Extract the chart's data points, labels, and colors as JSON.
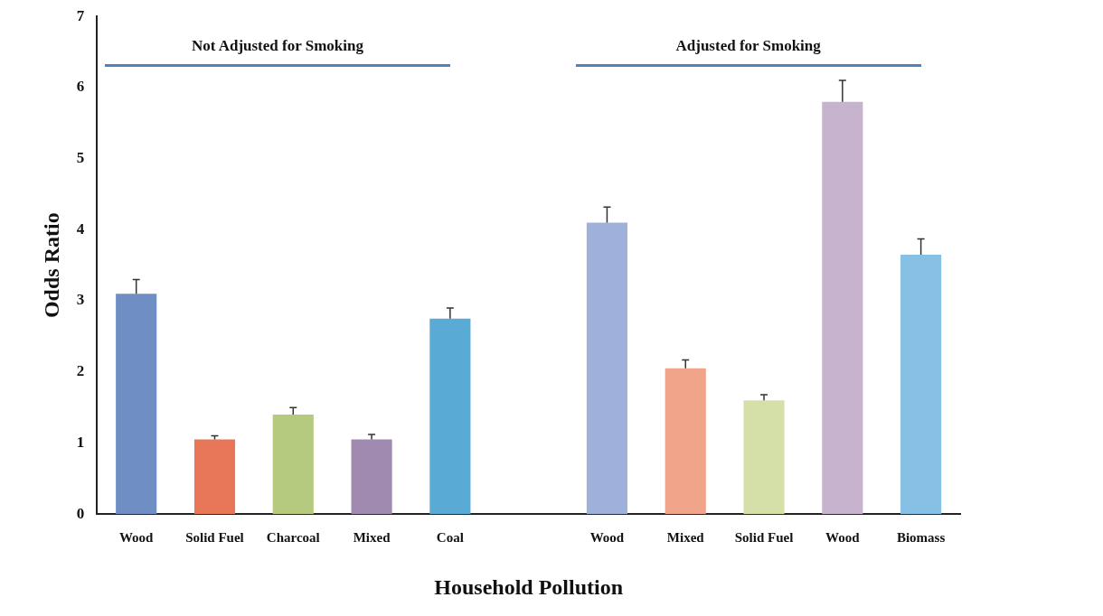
{
  "chart_data": {
    "type": "bar",
    "xlabel": "Household Pollution",
    "ylabel": "Odds Ratio",
    "categories": [
      "Wood",
      "Solid Fuel",
      "Charcoal",
      "Mixed",
      "Coal",
      null,
      "Wood",
      "Mixed",
      "Solid Fuel",
      "Wood",
      "Biomass"
    ],
    "values": [
      3.1,
      1.05,
      1.4,
      1.05,
      2.75,
      null,
      4.1,
      2.05,
      1.6,
      5.8,
      3.65
    ],
    "colors": [
      "#6f8fc4",
      "#e8775a",
      "#b5c97f",
      "#a08ab0",
      "#5aaad6",
      "#ffffff",
      "#9fb0db",
      "#f0a58a",
      "#d5e0a8",
      "#c8b3cf",
      "#86c0e4"
    ],
    "errors": [
      [
        3.1,
        3.3
      ],
      [
        1.05,
        1.1
      ],
      [
        1.4,
        1.5
      ],
      [
        1.05,
        1.12
      ],
      [
        2.75,
        2.9
      ],
      null,
      [
        4.1,
        4.32
      ],
      [
        2.05,
        2.17
      ],
      [
        1.6,
        1.68
      ],
      [
        5.8,
        6.1
      ],
      [
        3.65,
        3.87
      ]
    ],
    "annotations": [
      "Not Adjusted for Smoking",
      "Adjusted for Smoking"
    ],
    "ylim": [
      0,
      7
    ],
    "yticks": [
      0,
      1,
      2,
      3,
      4,
      5,
      6,
      7
    ],
    "grid": false,
    "legend": false
  }
}
